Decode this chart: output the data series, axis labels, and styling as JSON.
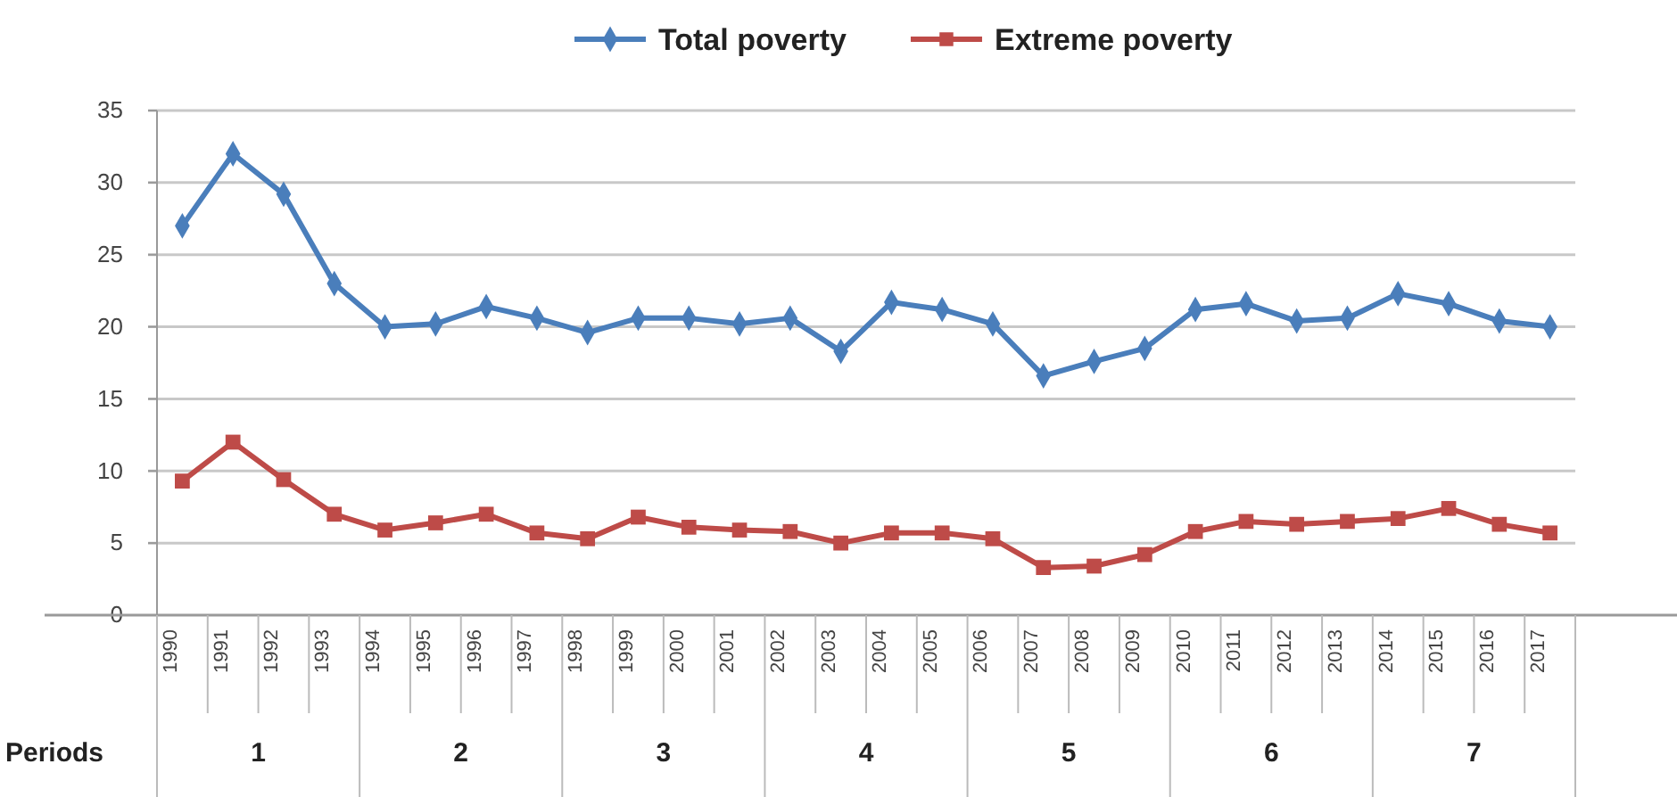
{
  "chart_data": {
    "type": "line",
    "categories": [
      "1990",
      "1991",
      "1992",
      "1993",
      "1994",
      "1995",
      "1996",
      "1997",
      "1998",
      "1999",
      "2000",
      "2001",
      "2002",
      "2003",
      "2004",
      "2005",
      "2006",
      "2007",
      "2008",
      "2009",
      "2010",
      "2011",
      "2012",
      "2013",
      "2014",
      "2015",
      "2016",
      "2017"
    ],
    "series": [
      {
        "name": "Total poverty",
        "color": "#4a7ebb",
        "marker": "diamond",
        "values": [
          27,
          32,
          29.2,
          23,
          20,
          20.2,
          21.4,
          20.6,
          19.6,
          20.6,
          20.6,
          20.2,
          20.6,
          18.3,
          21.7,
          21.2,
          20.2,
          16.6,
          17.6,
          18.5,
          21.2,
          21.6,
          20.4,
          20.6,
          22.3,
          21.6,
          20.4,
          20
        ]
      },
      {
        "name": "Extreme poverty",
        "color": "#be4b48",
        "marker": "square",
        "values": [
          9.3,
          12,
          9.4,
          7,
          5.9,
          6.4,
          7,
          5.7,
          5.3,
          6.8,
          6.1,
          5.9,
          5.8,
          5,
          5.7,
          5.7,
          5.3,
          3.3,
          3.4,
          4.2,
          5.8,
          6.5,
          6.3,
          6.5,
          6.7,
          7.4,
          6.3,
          5.7
        ]
      }
    ],
    "ylim": [
      0,
      35
    ],
    "yticks": [
      0,
      5,
      10,
      15,
      20,
      25,
      30,
      35
    ],
    "grid": "y",
    "legend": "top",
    "annotations": [
      "Periods",
      "1",
      "2",
      "3",
      "4",
      "5",
      "6",
      "7"
    ]
  }
}
